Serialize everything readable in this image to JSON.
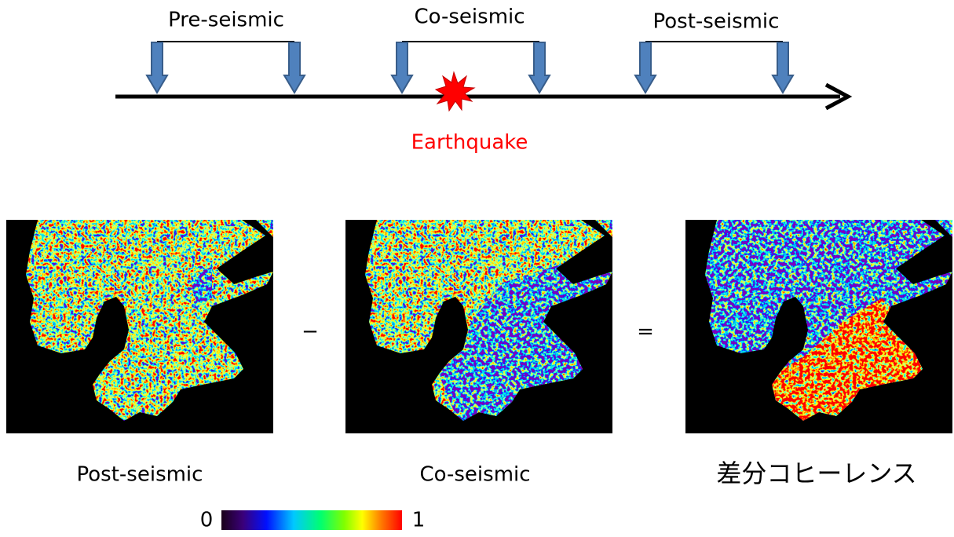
{
  "timeline": {
    "periods": [
      "Pre-seismic",
      "Co-seismic",
      "Post-seismic"
    ],
    "event": "Earthquake"
  },
  "operators": [
    "−",
    "="
  ],
  "panels": [
    {
      "caption": "Post-seismic"
    },
    {
      "caption": "Co-seismic"
    },
    {
      "caption": "差分コヒーレンス"
    }
  ],
  "colorbar": {
    "min": 0,
    "max": 1
  }
}
